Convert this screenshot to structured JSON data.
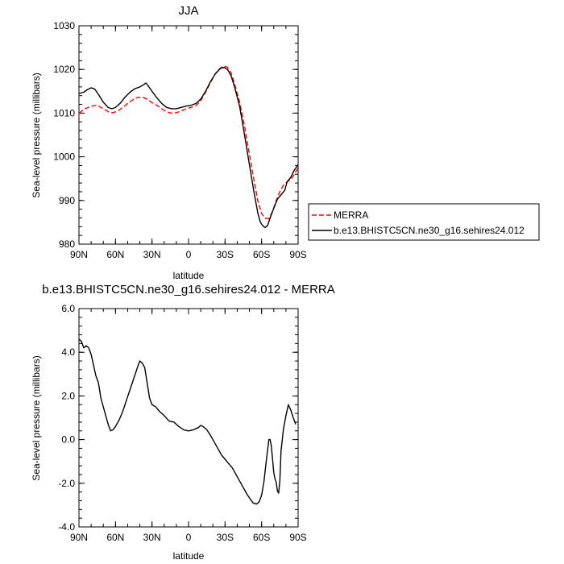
{
  "chart_data": [
    {
      "type": "line",
      "title": "JJA",
      "xlabel": "latitude",
      "ylabel": "Sea-level pressure (millibars)",
      "xlim": [
        90,
        -90
      ],
      "ylim": [
        980,
        1030
      ],
      "x_ticks": [
        {
          "value": 90,
          "label": "90N"
        },
        {
          "value": 60,
          "label": "60N"
        },
        {
          "value": 30,
          "label": "30N"
        },
        {
          "value": 0,
          "label": "0"
        },
        {
          "value": -30,
          "label": "30S"
        },
        {
          "value": -60,
          "label": "60S"
        },
        {
          "value": -90,
          "label": "90S"
        }
      ],
      "y_ticks": [
        {
          "value": 980,
          "label": "980"
        },
        {
          "value": 990,
          "label": "990"
        },
        {
          "value": 1000,
          "label": "1000"
        },
        {
          "value": 1010,
          "label": "1010"
        },
        {
          "value": 1020,
          "label": "1020"
        },
        {
          "value": 1030,
          "label": "1030"
        }
      ],
      "grid": false,
      "legend": "right",
      "series": [
        {
          "name": "MERRA",
          "color": "#ff0000",
          "dash": "dashed",
          "points": [
            [
              90,
              1010
            ],
            [
              85,
              1011
            ],
            [
              80,
              1011.6
            ],
            [
              75,
              1011.8
            ],
            [
              70,
              1011
            ],
            [
              65,
              1010.2
            ],
            [
              62,
              1010.1
            ],
            [
              58,
              1010.5
            ],
            [
              54,
              1011.3
            ],
            [
              50,
              1012.2
            ],
            [
              46,
              1013
            ],
            [
              42,
              1013.6
            ],
            [
              38,
              1013.7
            ],
            [
              34,
              1013.2
            ],
            [
              30,
              1012.4
            ],
            [
              26,
              1011.8
            ],
            [
              22,
              1011
            ],
            [
              18,
              1010.3
            ],
            [
              14,
              1010
            ],
            [
              10,
              1010.1
            ],
            [
              6,
              1010.5
            ],
            [
              2,
              1011
            ],
            [
              -2,
              1011.3
            ],
            [
              -6,
              1011.7
            ],
            [
              -10,
              1012.8
            ],
            [
              -14,
              1014.8
            ],
            [
              -18,
              1017
            ],
            [
              -22,
              1019
            ],
            [
              -26,
              1020.3
            ],
            [
              -29,
              1020.8
            ],
            [
              -32,
              1020.5
            ],
            [
              -35,
              1019.2
            ],
            [
              -38,
              1016.5
            ],
            [
              -42,
              1012.5
            ],
            [
              -46,
              1007
            ],
            [
              -50,
              1000.5
            ],
            [
              -54,
              994.3
            ],
            [
              -57,
              989.8
            ],
            [
              -60,
              987
            ],
            [
              -63,
              985.9
            ],
            [
              -66,
              985.9
            ],
            [
              -69,
              987.5
            ],
            [
              -72,
              990
            ],
            [
              -75,
              992
            ],
            [
              -78,
              993.5
            ],
            [
              -81,
              994.3
            ],
            [
              -84,
              994.8
            ],
            [
              -87,
              996
            ],
            [
              -90,
              997.5
            ]
          ]
        },
        {
          "name": "b.e13.BHISTC5CN.ne30_g16.sehires24.012",
          "color": "#000000",
          "dash": "solid",
          "points": [
            [
              90,
              1014.5
            ],
            [
              86,
              1014.8
            ],
            [
              83,
              1015.4
            ],
            [
              80,
              1015.8
            ],
            [
              77,
              1015.5
            ],
            [
              74,
              1014.3
            ],
            [
              70,
              1012.5
            ],
            [
              66,
              1011.3
            ],
            [
              63,
              1011
            ],
            [
              60,
              1011.3
            ],
            [
              56,
              1012.3
            ],
            [
              52,
              1013.7
            ],
            [
              48,
              1014.8
            ],
            [
              44,
              1015.6
            ],
            [
              40,
              1016
            ],
            [
              37,
              1016.5
            ],
            [
              35,
              1016.9
            ],
            [
              33,
              1016.2
            ],
            [
              30,
              1015
            ],
            [
              26,
              1013.5
            ],
            [
              22,
              1012.2
            ],
            [
              18,
              1011.3
            ],
            [
              14,
              1011
            ],
            [
              10,
              1011
            ],
            [
              6,
              1011.3
            ],
            [
              2,
              1011.6
            ],
            [
              -2,
              1011.8
            ],
            [
              -6,
              1012.2
            ],
            [
              -10,
              1013.2
            ],
            [
              -14,
              1015
            ],
            [
              -18,
              1017.2
            ],
            [
              -22,
              1019
            ],
            [
              -26,
              1020.2
            ],
            [
              -29,
              1020.5
            ],
            [
              -32,
              1020
            ],
            [
              -35,
              1018.5
            ],
            [
              -38,
              1015.8
            ],
            [
              -42,
              1011.5
            ],
            [
              -46,
              1005
            ],
            [
              -50,
              998.2
            ],
            [
              -54,
              991.5
            ],
            [
              -57,
              987
            ],
            [
              -59,
              985
            ],
            [
              -61,
              984.2
            ],
            [
              -63,
              983.8
            ],
            [
              -65,
              984.3
            ],
            [
              -67,
              986
            ],
            [
              -70,
              988.2
            ],
            [
              -73,
              990.3
            ],
            [
              -76,
              991.3
            ],
            [
              -79,
              992.3
            ],
            [
              -81,
              994.3
            ],
            [
              -84,
              995.3
            ],
            [
              -87,
              997
            ],
            [
              -90,
              998.2
            ]
          ]
        }
      ]
    },
    {
      "type": "line",
      "title": "b.e13.BHISTC5CN.ne30_g16.sehires24.012 - MERRA",
      "xlabel": "latitude",
      "ylabel": "Sea-level pressure (millibars)",
      "xlim": [
        90,
        -90
      ],
      "ylim": [
        -4,
        6
      ],
      "x_ticks": [
        {
          "value": 90,
          "label": "90N"
        },
        {
          "value": 60,
          "label": "60N"
        },
        {
          "value": 30,
          "label": "30N"
        },
        {
          "value": 0,
          "label": "0"
        },
        {
          "value": -30,
          "label": "30S"
        },
        {
          "value": -60,
          "label": "60S"
        },
        {
          "value": -90,
          "label": "90S"
        }
      ],
      "y_ticks": [
        {
          "value": -4,
          "label": "-4.0"
        },
        {
          "value": -2,
          "label": "-2.0"
        },
        {
          "value": 0,
          "label": "0.0"
        },
        {
          "value": 2,
          "label": "2.0"
        },
        {
          "value": 4,
          "label": "4.0"
        },
        {
          "value": 6,
          "label": "6.0"
        }
      ],
      "grid": false,
      "series": [
        {
          "name": "",
          "color": "#000000",
          "dash": "solid",
          "points": [
            [
              90,
              4.6
            ],
            [
              88,
              4.5
            ],
            [
              86,
              4.2
            ],
            [
              84,
              4.3
            ],
            [
              82,
              4.2
            ],
            [
              80,
              3.9
            ],
            [
              78,
              3.4
            ],
            [
              76,
              2.9
            ],
            [
              74,
              2.6
            ],
            [
              72,
              1.9
            ],
            [
              70,
              1.5
            ],
            [
              68,
              1.1
            ],
            [
              66,
              0.7
            ],
            [
              64,
              0.4
            ],
            [
              62,
              0.45
            ],
            [
              60,
              0.6
            ],
            [
              57,
              0.9
            ],
            [
              54,
              1.3
            ],
            [
              51,
              1.8
            ],
            [
              48,
              2.3
            ],
            [
              45,
              2.8
            ],
            [
              42,
              3.3
            ],
            [
              40,
              3.6
            ],
            [
              38,
              3.5
            ],
            [
              36,
              3.3
            ],
            [
              34,
              2.6
            ],
            [
              32,
              1.9
            ],
            [
              30,
              1.6
            ],
            [
              27,
              1.5
            ],
            [
              24,
              1.3
            ],
            [
              20,
              1.1
            ],
            [
              16,
              0.85
            ],
            [
              12,
              0.8
            ],
            [
              8,
              0.6
            ],
            [
              4,
              0.45
            ],
            [
              0,
              0.4
            ],
            [
              -4,
              0.45
            ],
            [
              -8,
              0.55
            ],
            [
              -10,
              0.65
            ],
            [
              -12,
              0.6
            ],
            [
              -15,
              0.45
            ],
            [
              -18,
              0.2
            ],
            [
              -21,
              -0.1
            ],
            [
              -24,
              -0.4
            ],
            [
              -27,
              -0.7
            ],
            [
              -30,
              -0.9
            ],
            [
              -33,
              -1.1
            ],
            [
              -36,
              -1.3
            ],
            [
              -39,
              -1.6
            ],
            [
              -42,
              -1.9
            ],
            [
              -45,
              -2.2
            ],
            [
              -48,
              -2.5
            ],
            [
              -51,
              -2.75
            ],
            [
              -53,
              -2.9
            ],
            [
              -56,
              -2.95
            ],
            [
              -58,
              -2.85
            ],
            [
              -60,
              -2.55
            ],
            [
              -62,
              -1.9
            ],
            [
              -64,
              -0.9
            ],
            [
              -66,
              0.0
            ],
            [
              -67,
              0.0
            ],
            [
              -68,
              -0.3
            ],
            [
              -70,
              -1.5
            ],
            [
              -71,
              -1.8
            ],
            [
              -72,
              -1.95
            ],
            [
              -73,
              -2.35
            ],
            [
              -74,
              -2.45
            ],
            [
              -75,
              -1.9
            ],
            [
              -76,
              -0.5
            ],
            [
              -78,
              0.5
            ],
            [
              -80,
              1.1
            ],
            [
              -82,
              1.6
            ],
            [
              -84,
              1.35
            ],
            [
              -86,
              1.0
            ],
            [
              -88,
              0.7
            ]
          ]
        }
      ]
    }
  ]
}
